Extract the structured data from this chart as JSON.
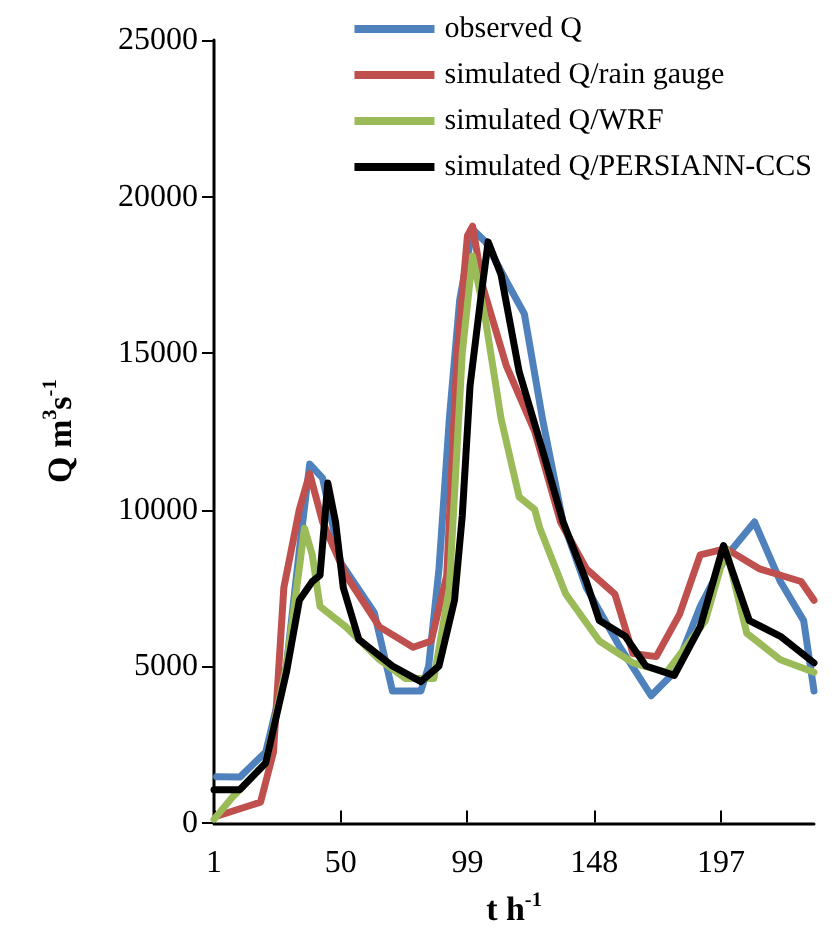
{
  "chart_data": {
    "type": "line",
    "xlabel": "t h$^{-1}$",
    "ylabel": "Q m$^{3}$s$^{-1}$",
    "xlim": [
      1,
      233
    ],
    "xticks": [
      1,
      50,
      99,
      148,
      197
    ],
    "ylim": [
      0,
      25000
    ],
    "yticks": [
      0,
      5000,
      10000,
      15000,
      20000,
      25000
    ],
    "grid": false,
    "legend": "top right",
    "marker": "none",
    "line_style": "solid",
    "series": [
      {
        "name": "observed Q",
        "color": "#4f81bd",
        "x": [
          2,
          11,
          21,
          29,
          34,
          38,
          43,
          50,
          63,
          70,
          81,
          84,
          88,
          92,
          96,
          101,
          106,
          114,
          121,
          128,
          136,
          145,
          158,
          170,
          179,
          189,
          199,
          210,
          220,
          229,
          233
        ],
        "values": [
          1460,
          1450,
          2250,
          5000,
          8700,
          11450,
          11000,
          8300,
          6700,
          4200,
          4200,
          5000,
          8100,
          12900,
          16700,
          18950,
          18550,
          17300,
          16250,
          12900,
          9580,
          7500,
          5600,
          4050,
          4800,
          6900,
          8500,
          9600,
          7700,
          6450,
          4200
        ]
      },
      {
        "name": "simulated Q/rain gauge",
        "color": "#c0504d",
        "x": [
          2,
          19,
          24,
          28,
          34,
          38,
          43,
          52,
          65,
          78,
          85,
          91,
          95,
          99,
          101,
          105,
          114,
          125,
          135,
          145,
          156,
          163,
          172,
          181,
          189,
          199,
          212,
          228,
          233
        ],
        "values": [
          200,
          650,
          2250,
          7500,
          10000,
          11150,
          9600,
          7900,
          6250,
          5600,
          5800,
          7900,
          15000,
          18750,
          19050,
          17100,
          14600,
          12500,
          9600,
          8100,
          7300,
          5400,
          5300,
          6650,
          8550,
          8750,
          8100,
          7700,
          7100
        ]
      },
      {
        "name": "simulated Q/WRF",
        "color": "#9bbb59",
        "x": [
          1,
          8,
          21,
          29,
          36,
          39,
          42,
          52,
          65,
          75,
          86,
          92,
          97,
          101,
          106,
          112,
          119,
          125,
          127,
          137,
          150,
          163,
          176,
          191,
          199,
          207,
          220,
          233
        ],
        "values": [
          100,
          800,
          1900,
          5000,
          9400,
          8550,
          6900,
          6250,
          5200,
          4600,
          4600,
          7500,
          15000,
          18100,
          16050,
          12900,
          10400,
          10000,
          9400,
          7300,
          5800,
          5100,
          4800,
          6450,
          8750,
          6050,
          5200,
          4800
        ]
      },
      {
        "name": "simulated Q/PERSIANN-CCS",
        "color": "#000000",
        "x": [
          1,
          11,
          21,
          29,
          34,
          39,
          42,
          45,
          48,
          51,
          57,
          70,
          81,
          88,
          94,
          97,
          100,
          104,
          107,
          112,
          119,
          128,
          136,
          145,
          150,
          160,
          168,
          179,
          189,
          198,
          208,
          220,
          233
        ],
        "values": [
          1050,
          1050,
          1900,
          4800,
          7100,
          7700,
          7900,
          10850,
          9600,
          7500,
          5850,
          5000,
          4500,
          5000,
          7100,
          9800,
          13950,
          16650,
          18550,
          17500,
          14400,
          11900,
          9600,
          7700,
          6450,
          5950,
          5000,
          4700,
          6250,
          8850,
          6450,
          5950,
          5100
        ]
      }
    ]
  }
}
